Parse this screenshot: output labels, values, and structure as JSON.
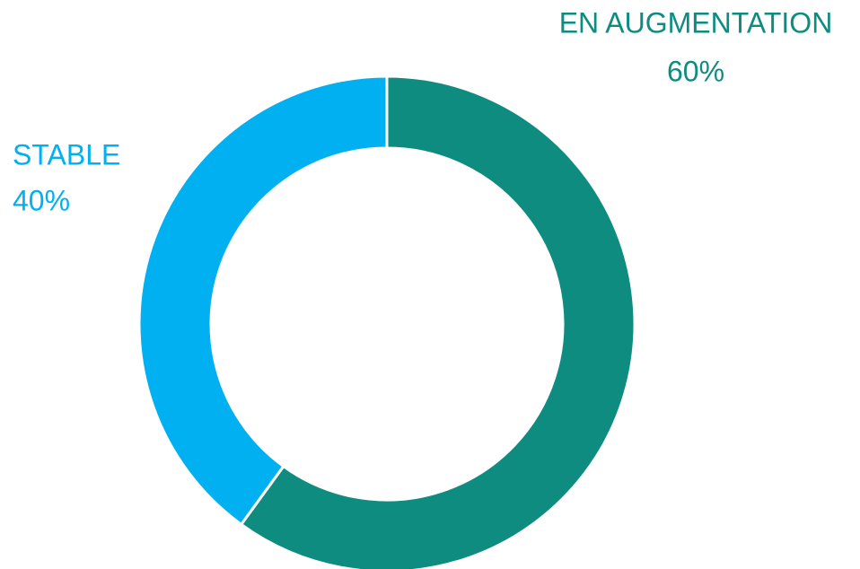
{
  "chart_data": {
    "type": "donut",
    "categories": [
      "EN AUGMENTATION",
      "STABLE"
    ],
    "values": [
      60,
      40
    ],
    "value_labels": [
      "60%",
      "40%"
    ],
    "colors": [
      "#0e8c80",
      "#00b0f0"
    ]
  }
}
